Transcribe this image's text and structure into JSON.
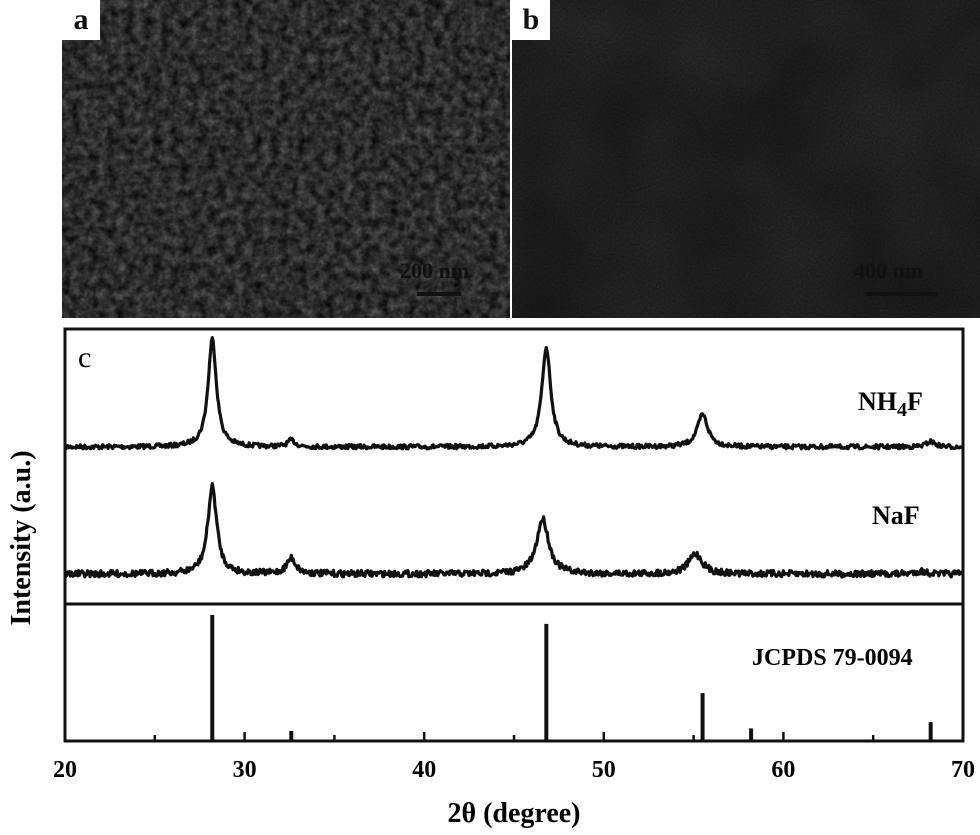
{
  "panel_a": {
    "label": "a",
    "scale_label": "200 nm"
  },
  "panel_b": {
    "label": "b",
    "scale_label": "400 nm"
  },
  "chart_data": {
    "type": "line",
    "panel_label": "c",
    "xlabel": "2θ (degree)",
    "ylabel": "Intensity (a.u.)",
    "xlim": [
      20,
      70
    ],
    "xticks": [
      20,
      30,
      40,
      50,
      60,
      70
    ],
    "grid": false,
    "series": [
      {
        "name": "NH4F",
        "label_main": "NH",
        "label_sub": "4",
        "label_end": "F",
        "baseline": 0.05,
        "peaks": [
          {
            "x": 28.2,
            "height": 1.0,
            "width": 0.28
          },
          {
            "x": 32.6,
            "height": 0.06,
            "width": 0.25
          },
          {
            "x": 46.8,
            "height": 0.92,
            "width": 0.3
          },
          {
            "x": 55.5,
            "height": 0.3,
            "width": 0.35
          },
          {
            "x": 68.2,
            "height": 0.05,
            "width": 0.3
          }
        ]
      },
      {
        "name": "NaF",
        "label_main": "NaF",
        "label_sub": "",
        "label_end": "",
        "baseline": 0.04,
        "peaks": [
          {
            "x": 28.2,
            "height": 0.95,
            "width": 0.3
          },
          {
            "x": 32.6,
            "height": 0.17,
            "width": 0.3
          },
          {
            "x": 46.6,
            "height": 0.6,
            "width": 0.4
          },
          {
            "x": 55.1,
            "height": 0.22,
            "width": 0.45
          },
          {
            "x": 67.6,
            "height": 0.03,
            "width": 0.4
          }
        ]
      }
    ],
    "reference": {
      "name": "JCPDS 79-0094",
      "x": [
        28.2,
        32.6,
        46.8,
        55.5,
        58.2,
        68.2
      ],
      "intensity": [
        100,
        8,
        93,
        38,
        10,
        15
      ]
    }
  }
}
